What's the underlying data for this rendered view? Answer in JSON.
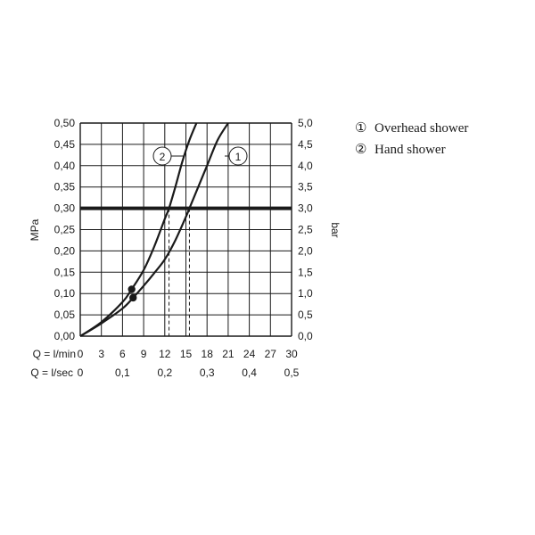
{
  "chart_data": {
    "type": "line",
    "title": "",
    "ylabel_left": "MPa",
    "ylabel_right": "bar",
    "ylim": [
      0,
      0.5
    ],
    "xlim": [
      0,
      30
    ],
    "y_ticks_left": [
      "0,00",
      "0,05",
      "0,10",
      "0,15",
      "0,20",
      "0,25",
      "0,30",
      "0,35",
      "0,40",
      "0,45",
      "0,50"
    ],
    "y_ticks_right": [
      "0,0",
      "0,5",
      "1,0",
      "1,5",
      "2,0",
      "2,5",
      "3,0",
      "3,5",
      "4,0",
      "4,5",
      "5,0"
    ],
    "x_row1": {
      "label": "Q = l/min",
      "ticks": [
        {
          "x": 0,
          "label": "0"
        },
        {
          "x": 3,
          "label": "3"
        },
        {
          "x": 6,
          "label": "6"
        },
        {
          "x": 9,
          "label": "9"
        },
        {
          "x": 12,
          "label": "12"
        },
        {
          "x": 15,
          "label": "15"
        },
        {
          "x": 18,
          "label": "18"
        },
        {
          "x": 21,
          "label": "21"
        },
        {
          "x": 24,
          "label": "24"
        },
        {
          "x": 27,
          "label": "27"
        },
        {
          "x": 30,
          "label": "30"
        }
      ]
    },
    "x_row2": {
      "label": "Q = l/sec",
      "ticks": [
        {
          "x": 0,
          "label": "0"
        },
        {
          "x": 6,
          "label": "0,1"
        },
        {
          "x": 12,
          "label": "0,2"
        },
        {
          "x": 18,
          "label": "0,3"
        },
        {
          "x": 24,
          "label": "0,4"
        },
        {
          "x": 30,
          "label": "0,5"
        }
      ]
    },
    "reference_line": {
      "y": 0.3
    },
    "series": [
      {
        "name": "1",
        "x": [
          0,
          3,
          6,
          7.5,
          9,
          10.5,
          12,
          13.5,
          15,
          15.5,
          16.5,
          18,
          19.5,
          21
        ],
        "y": [
          0,
          0.03,
          0.065,
          0.09,
          0.118,
          0.148,
          0.18,
          0.225,
          0.28,
          0.3,
          0.34,
          0.4,
          0.46,
          0.5
        ],
        "marker": {
          "x": 7.5,
          "y": 0.09
        },
        "callout": "1"
      },
      {
        "name": "2",
        "x": [
          0,
          3,
          6,
          7.3,
          9,
          10.5,
          12,
          12.6,
          13.5,
          14.5,
          15.5,
          16.5
        ],
        "y": [
          0,
          0.033,
          0.08,
          0.11,
          0.155,
          0.21,
          0.275,
          0.3,
          0.35,
          0.41,
          0.46,
          0.5
        ],
        "marker": {
          "x": 7.3,
          "y": 0.11
        },
        "callout": "2"
      }
    ],
    "dashed_drop_lines": [
      12.6,
      15.5
    ],
    "grid": true
  },
  "legend": {
    "items": [
      {
        "symbol": "①",
        "label": "Overhead shower"
      },
      {
        "symbol": "②",
        "label": "Hand shower"
      }
    ]
  }
}
